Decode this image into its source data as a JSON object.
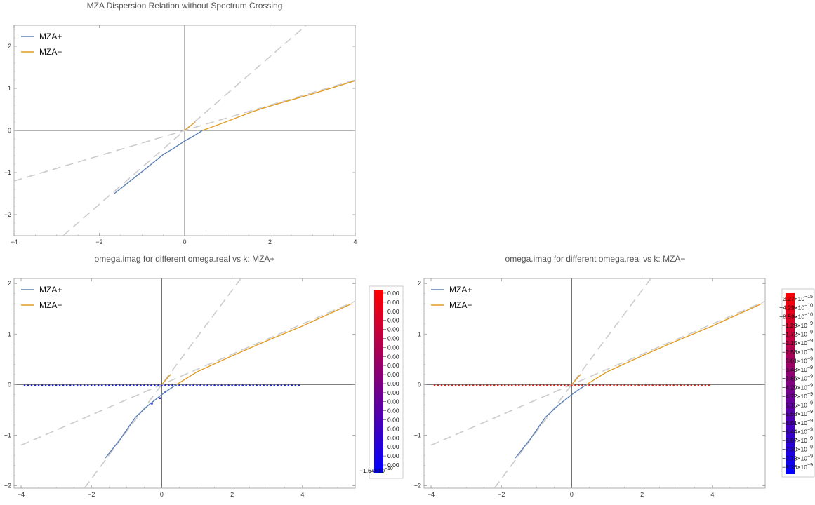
{
  "chart_data": [
    {
      "type": "line",
      "title": "MZA Dispersion Relation without Spectrum Crossing",
      "xlim": [
        -4,
        4
      ],
      "ylim": [
        -2.5,
        2.5
      ],
      "xticks": [
        "−4",
        "−2",
        "0",
        "2",
        "4"
      ],
      "yticks": [
        "−2",
        "−1",
        "0",
        "1",
        "2"
      ],
      "legend_position": "top-left",
      "series": [
        {
          "name": "MZA+",
          "color": "#5e81b5",
          "points": [
            [
              -1.65,
              -1.5
            ],
            [
              -1.3,
              -1.22
            ],
            [
              -1.0,
              -0.98
            ],
            [
              -0.5,
              -0.57
            ],
            [
              -0.25,
              -0.42
            ],
            [
              0.0,
              -0.25
            ],
            [
              0.2,
              -0.14
            ],
            [
              0.42,
              0.0
            ]
          ]
        },
        {
          "name": "MZA−",
          "color": "#e19c24",
          "points": [
            [
              0.0,
              0.0
            ],
            [
              0.25,
              0.2
            ]
          ],
          "points2": [
            [
              0.42,
              0.0
            ],
            [
              0.8,
              0.14
            ],
            [
              1.6,
              0.45
            ],
            [
              2.0,
              0.58
            ],
            [
              3.0,
              0.87
            ],
            [
              4.0,
              1.18
            ]
          ]
        }
      ],
      "guides": [
        {
          "style": "dashed",
          "color": "#cccccc",
          "points": [
            [
              -4,
              -1.2
            ],
            [
              4,
              1.2
            ]
          ]
        },
        {
          "style": "dashed",
          "color": "#cccccc",
          "points": [
            [
              -2.85,
              -2.5
            ],
            [
              2.85,
              2.5
            ]
          ]
        }
      ]
    },
    {
      "type": "line",
      "title": "omega.imag for different omega.real vs k: MZA+",
      "xlim": [
        -4.2,
        5.5
      ],
      "ylim": [
        -2.05,
        2.1
      ],
      "xticks": [
        "−4",
        "−2",
        "0",
        "2",
        "4"
      ],
      "yticks": [
        "−2",
        "−1",
        "0",
        "1",
        "2"
      ],
      "legend_position": "top-left",
      "series": [
        {
          "name": "MZA+",
          "color": "#5e81b5",
          "points": [
            [
              -1.6,
              -1.45
            ],
            [
              -1.2,
              -1.1
            ],
            [
              -0.75,
              -0.65
            ],
            [
              -0.4,
              -0.42
            ],
            [
              0.0,
              -0.2
            ],
            [
              0.2,
              -0.1
            ],
            [
              0.42,
              0.0
            ]
          ]
        },
        {
          "name": "MZA−",
          "color": "#e19c24",
          "points": [
            [
              0.0,
              0.0
            ],
            [
              0.25,
              0.2
            ]
          ],
          "points2": [
            [
              0.42,
              0.0
            ],
            [
              1.0,
              0.25
            ],
            [
              2.0,
              0.57
            ],
            [
              3.0,
              0.87
            ],
            [
              4.0,
              1.16
            ],
            [
              5.4,
              1.6
            ]
          ]
        }
      ],
      "guides": [
        {
          "style": "dashed",
          "color": "#cccccc",
          "points": [
            [
              -4,
              -1.2
            ],
            [
              5.5,
              1.65
            ]
          ]
        },
        {
          "style": "dashed",
          "color": "#cccccc",
          "points": [
            [
              -2.2,
              -2.05
            ],
            [
              2.25,
              2.1
            ]
          ]
        }
      ],
      "scatter": {
        "x_start": -3.9,
        "x_end": 3.9,
        "step": 0.1,
        "y": -0.02,
        "color": "#2020ee",
        "extra_points": [
          [
            -0.28,
            -0.38
          ],
          [
            -0.05,
            -0.27
          ],
          [
            0.1,
            -0.15
          ]
        ]
      },
      "colorbar": {
        "min_label": "−1.64×10",
        "min_exp": "−10",
        "labels": [
          "0.00",
          "0.00",
          "0.00",
          "0.00",
          "0.00",
          "0.00",
          "0.00",
          "0.00",
          "0.00",
          "0.00",
          "0.00",
          "0.00",
          "0.00",
          "0.00",
          "0.00",
          "0.00",
          "0.00",
          "0.00",
          "0.00",
          "0.00",
          "0.00",
          "0.00",
          "0.00",
          "0.00",
          "0.00",
          "0.00",
          "0.00",
          "0.00",
          "0.00",
          "0.00",
          "0.00",
          "0.00",
          "0.00",
          "0.00",
          "0.00",
          "0.00",
          "0.00",
          "0.00",
          "0.00",
          "0.00",
          "0.00",
          "0.00",
          "0.00",
          "0.00",
          "0.00",
          "0.00",
          "0.00",
          "0.00",
          "0.00",
          "0.00",
          "0.00",
          "0.00",
          "0.00",
          "0.00",
          "0.00",
          "0.00",
          "0.00",
          "0.00",
          "0.00",
          "0.00",
          "0.00",
          "0.00",
          "0.00",
          "0.00",
          "0.00",
          "0.00",
          "0.00",
          "0.00",
          "0.00",
          "0.00",
          "0.00",
          "0.00",
          "0.00",
          "0.00",
          "0.00",
          "0.00",
          "0.00",
          "0.00",
          "0.00",
          "0.00",
          "0.00",
          "0.00",
          "0.00",
          "0.00",
          "0.00",
          "0.00",
          "0.00",
          "0.00",
          "0.00",
          "0.00",
          "0.00",
          "0.00",
          "0.00",
          "0.00",
          "0.00",
          "0.00",
          "0.00",
          "0.00",
          "0.00"
        ],
        "top_color": "#ff0000",
        "bottom_color": "#0000ff"
      }
    },
    {
      "type": "line",
      "title": "omega.imag for different omega.real vs k: MZA−",
      "xlim": [
        -4.2,
        5.5
      ],
      "ylim": [
        -2.05,
        2.1
      ],
      "xticks": [
        "−4",
        "−2",
        "0",
        "2",
        "4"
      ],
      "yticks": [
        "−2",
        "−1",
        "0",
        "1",
        "2"
      ],
      "legend_position": "top-left",
      "series": [
        {
          "name": "MZA+",
          "color": "#5e81b5",
          "points": [
            [
              -1.6,
              -1.45
            ],
            [
              -1.2,
              -1.1
            ],
            [
              -0.75,
              -0.65
            ],
            [
              -0.4,
              -0.42
            ],
            [
              0.0,
              -0.2
            ],
            [
              0.2,
              -0.1
            ],
            [
              0.42,
              0.0
            ]
          ]
        },
        {
          "name": "MZA−",
          "color": "#e19c24",
          "points": [
            [
              0.0,
              0.0
            ],
            [
              0.25,
              0.2
            ]
          ],
          "points2": [
            [
              0.42,
              0.0
            ],
            [
              1.0,
              0.25
            ],
            [
              2.0,
              0.57
            ],
            [
              3.0,
              0.87
            ],
            [
              4.0,
              1.16
            ],
            [
              5.4,
              1.6
            ]
          ]
        }
      ],
      "guides": [
        {
          "style": "dashed",
          "color": "#cccccc",
          "points": [
            [
              -4,
              -1.2
            ],
            [
              5.5,
              1.65
            ]
          ]
        },
        {
          "style": "dashed",
          "color": "#cccccc",
          "points": [
            [
              -2.2,
              -2.05
            ],
            [
              2.25,
              2.1
            ]
          ]
        }
      ],
      "scatter": {
        "x_start": -3.9,
        "x_end": 3.9,
        "step": 0.1,
        "y": -0.02,
        "color": "#ee2020",
        "extra_points": []
      },
      "colorbar": {
        "labels": [
          [
            "3.27×10",
            "−15"
          ],
          [
            "−4.29×10",
            "−10"
          ],
          [
            "−8.59×10",
            "−10"
          ],
          [
            "−1.29×10",
            "−9"
          ],
          [
            "−1.72×10",
            "−9"
          ],
          [
            "−2.15×10",
            "−9"
          ],
          [
            "−2.58×10",
            "−9"
          ],
          [
            "−3.01×10",
            "−9"
          ],
          [
            "−3.43×10",
            "−9"
          ],
          [
            "−3.86×10",
            "−9"
          ],
          [
            "−4.29×10",
            "−9"
          ],
          [
            "−4.72×10",
            "−9"
          ],
          [
            "−5.15×10",
            "−9"
          ],
          [
            "−5.58×10",
            "−9"
          ],
          [
            "−6.01×10",
            "−9"
          ],
          [
            "−6.44×10",
            "−9"
          ],
          [
            "−6.87×10",
            "−9"
          ],
          [
            "−7.30×10",
            "−9"
          ],
          [
            "−7.73×10",
            "−9"
          ],
          [
            "−8.16×10",
            "−9"
          ]
        ],
        "top_color": "#ff0000",
        "bottom_color": "#0000ff"
      }
    }
  ]
}
